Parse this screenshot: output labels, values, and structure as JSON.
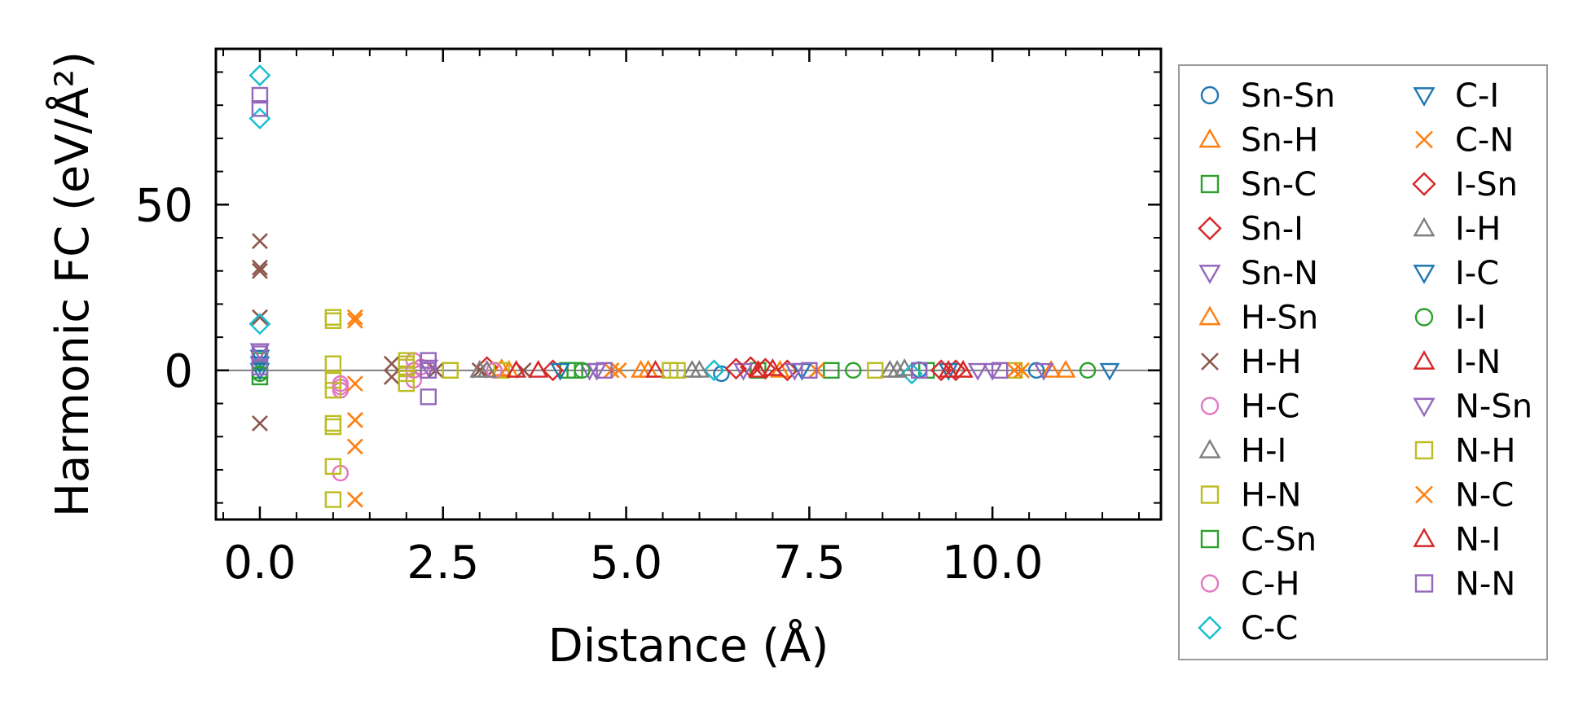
{
  "chart_data": {
    "type": "scatter",
    "title": "",
    "xlabel": "Distance (Å)",
    "ylabel": "Harmonic FC (eV/Å²)",
    "xlim": [
      -0.6,
      12.3
    ],
    "ylim": [
      -45,
      97
    ],
    "xticks": [
      0.0,
      2.5,
      5.0,
      7.5,
      10.0
    ],
    "xtick_labels": [
      "0.0",
      "2.5",
      "5.0",
      "7.5",
      "10.0"
    ],
    "yticks": [
      0,
      50
    ],
    "ytick_labels": [
      "0",
      "50"
    ],
    "zero_line": true,
    "grid": false,
    "legend_position": "outside-right",
    "legend_columns": 2,
    "series": [
      {
        "name": "Sn-Sn",
        "marker": "circle",
        "color": "#1f77b4",
        "points": [
          [
            6.3,
            -1
          ],
          [
            9.0,
            0.2
          ],
          [
            10.6,
            0
          ]
        ]
      },
      {
        "name": "Sn-H",
        "marker": "triangle-up",
        "color": "#ff7f0e",
        "points": [
          [
            3.3,
            0.5
          ],
          [
            5.2,
            0
          ],
          [
            7.1,
            0
          ],
          [
            9.6,
            0
          ],
          [
            11.0,
            0
          ]
        ]
      },
      {
        "name": "Sn-C",
        "marker": "square",
        "color": "#2ca02c",
        "points": [
          [
            4.2,
            0
          ],
          [
            6.8,
            0
          ],
          [
            9.1,
            0
          ]
        ]
      },
      {
        "name": "Sn-I",
        "marker": "diamond",
        "color": "#d62728",
        "points": [
          [
            3.1,
            1
          ],
          [
            6.7,
            1
          ],
          [
            6.9,
            0.5
          ],
          [
            7.2,
            0
          ],
          [
            9.5,
            0
          ]
        ]
      },
      {
        "name": "Sn-N",
        "marker": "triangle-down",
        "color": "#9467bd",
        "points": [
          [
            4.5,
            0
          ],
          [
            6.6,
            0
          ],
          [
            9.8,
            0
          ]
        ]
      },
      {
        "name": "H-Sn",
        "marker": "triangle-up",
        "color": "#ff7f0e",
        "points": [
          [
            3.4,
            0
          ],
          [
            5.3,
            0
          ],
          [
            10.8,
            0
          ]
        ]
      },
      {
        "name": "H-H",
        "marker": "x",
        "color": "#8c564b",
        "points": [
          [
            0,
            39
          ],
          [
            0,
            31
          ],
          [
            0,
            30
          ],
          [
            0,
            16
          ],
          [
            0,
            -16
          ],
          [
            1.8,
            2
          ],
          [
            1.8,
            -2
          ],
          [
            2.4,
            0
          ],
          [
            3.0,
            0
          ],
          [
            3.6,
            0
          ]
        ]
      },
      {
        "name": "H-C",
        "marker": "circle",
        "color": "#e377c2",
        "points": [
          [
            1.1,
            -31
          ],
          [
            1.1,
            -6
          ],
          [
            1.1,
            -5
          ],
          [
            2.1,
            3
          ],
          [
            2.1,
            -3
          ],
          [
            2.2,
            1
          ]
        ]
      },
      {
        "name": "H-I",
        "marker": "triangle-up",
        "color": "#7f7f7f",
        "points": [
          [
            3.0,
            0
          ],
          [
            5.9,
            0
          ],
          [
            8.6,
            0
          ],
          [
            8.8,
            0.5
          ]
        ]
      },
      {
        "name": "H-N",
        "marker": "square",
        "color": "#bcbd22",
        "points": [
          [
            1.0,
            16
          ],
          [
            1.0,
            2
          ],
          [
            1.0,
            -3
          ],
          [
            1.0,
            -6
          ],
          [
            1.0,
            -16
          ],
          [
            1.0,
            -17
          ],
          [
            1.0,
            -29
          ],
          [
            1.0,
            -39
          ],
          [
            2.0,
            3
          ],
          [
            2.0,
            1
          ],
          [
            2.0,
            -1
          ],
          [
            2.0,
            -4
          ],
          [
            2.6,
            0
          ],
          [
            3.3,
            0
          ],
          [
            5.7,
            0
          ],
          [
            8.4,
            0
          ],
          [
            10.3,
            0
          ]
        ]
      },
      {
        "name": "C-Sn",
        "marker": "square",
        "color": "#2ca02c",
        "points": [
          [
            0,
            3
          ],
          [
            0,
            0
          ],
          [
            0,
            -2
          ],
          [
            4.3,
            0
          ],
          [
            7.8,
            0
          ]
        ]
      },
      {
        "name": "C-H",
        "marker": "circle",
        "color": "#e377c2",
        "points": [
          [
            1.1,
            -4
          ],
          [
            2.1,
            0
          ],
          [
            3.2,
            0
          ]
        ]
      },
      {
        "name": "C-C",
        "marker": "diamond",
        "color": "#17becf",
        "points": [
          [
            0,
            89
          ],
          [
            0,
            76
          ],
          [
            0,
            14
          ],
          [
            6.2,
            0
          ],
          [
            8.9,
            -1
          ]
        ]
      },
      {
        "name": "C-I",
        "marker": "triangle-down",
        "color": "#1f77b4",
        "points": [
          [
            0,
            4
          ],
          [
            0,
            0
          ],
          [
            11.6,
            0
          ],
          [
            9.4,
            0
          ]
        ]
      },
      {
        "name": "C-N",
        "marker": "x",
        "color": "#ff7f0e",
        "points": [
          [
            1.3,
            15
          ],
          [
            1.3,
            -4
          ],
          [
            1.3,
            -15
          ],
          [
            1.3,
            -23
          ],
          [
            1.3,
            -39
          ],
          [
            4.8,
            0
          ],
          [
            7.6,
            0
          ],
          [
            10.4,
            0
          ]
        ]
      },
      {
        "name": "I-Sn",
        "marker": "diamond",
        "color": "#d62728",
        "points": [
          [
            4.0,
            0
          ],
          [
            6.5,
            0.5
          ],
          [
            9.3,
            0
          ]
        ]
      },
      {
        "name": "I-H",
        "marker": "triangle-up",
        "color": "#7f7f7f",
        "points": [
          [
            3.1,
            0
          ],
          [
            6.0,
            0
          ],
          [
            8.7,
            0
          ]
        ]
      },
      {
        "name": "I-C",
        "marker": "triangle-down",
        "color": "#1f77b4",
        "points": [
          [
            0,
            2
          ],
          [
            4.1,
            0
          ],
          [
            7.4,
            0
          ]
        ]
      },
      {
        "name": "I-I",
        "marker": "circle",
        "color": "#2ca02c",
        "points": [
          [
            0,
            -1
          ],
          [
            4.4,
            0
          ],
          [
            8.1,
            0
          ],
          [
            11.3,
            0
          ]
        ]
      },
      {
        "name": "I-N",
        "marker": "triangle-up",
        "color": "#d62728",
        "points": [
          [
            3.8,
            0
          ],
          [
            5.4,
            0
          ],
          [
            7.0,
            0.5
          ],
          [
            9.4,
            0
          ]
        ]
      },
      {
        "name": "N-Sn",
        "marker": "triangle-down",
        "color": "#9467bd",
        "points": [
          [
            0,
            6
          ],
          [
            2.3,
            1
          ],
          [
            4.6,
            0
          ],
          [
            7.3,
            0
          ],
          [
            10.0,
            0
          ],
          [
            10.7,
            0
          ]
        ]
      },
      {
        "name": "N-H",
        "marker": "square",
        "color": "#bcbd22",
        "points": [
          [
            1.0,
            15
          ],
          [
            2.0,
            2
          ],
          [
            2.6,
            0
          ],
          [
            5.6,
            0
          ]
        ]
      },
      {
        "name": "N-C",
        "marker": "x",
        "color": "#ff7f0e",
        "points": [
          [
            1.3,
            16
          ],
          [
            1.3,
            -15
          ],
          [
            4.9,
            0
          ],
          [
            10.3,
            0
          ]
        ]
      },
      {
        "name": "N-I",
        "marker": "triangle-up",
        "color": "#d62728",
        "points": [
          [
            3.5,
            0
          ],
          [
            6.8,
            0
          ],
          [
            9.6,
            0
          ]
        ]
      },
      {
        "name": "N-N",
        "marker": "square",
        "color": "#9467bd",
        "points": [
          [
            0,
            83
          ],
          [
            0,
            79
          ],
          [
            0,
            5
          ],
          [
            0,
            1
          ],
          [
            2.3,
            3
          ],
          [
            2.3,
            0
          ],
          [
            2.3,
            -8
          ],
          [
            4.7,
            0
          ],
          [
            7.5,
            0
          ],
          [
            9.0,
            0
          ],
          [
            10.1,
            0
          ]
        ]
      }
    ]
  }
}
